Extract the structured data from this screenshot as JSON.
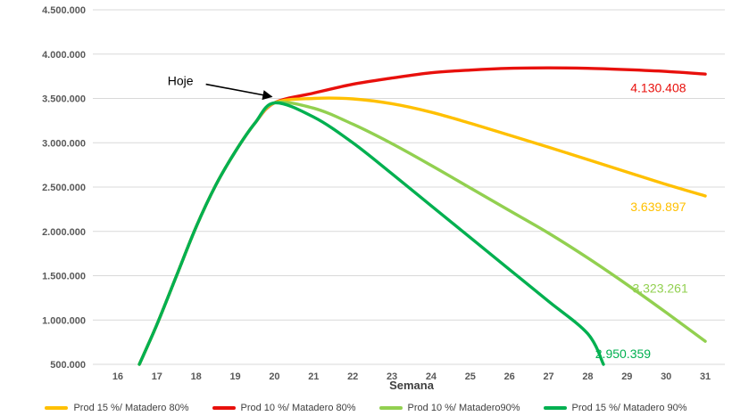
{
  "chart_data": {
    "type": "line",
    "title": "",
    "xlabel": "Semana",
    "grid": true,
    "legend_position": "bottom",
    "x_ticks": [
      16,
      17,
      18,
      19,
      20,
      21,
      22,
      23,
      24,
      25,
      26,
      27,
      28,
      29,
      30,
      31
    ],
    "ylim": [
      500000,
      4500000
    ],
    "y_ticks": [
      {
        "value": 500000,
        "label": "500.000"
      },
      {
        "value": 1000000,
        "label": "1.000.000"
      },
      {
        "value": 1500000,
        "label": "1.500.000"
      },
      {
        "value": 2000000,
        "label": "2.000.000"
      },
      {
        "value": 2500000,
        "label": "2.500.000"
      },
      {
        "value": 3000000,
        "label": "3.000.000"
      },
      {
        "value": 3500000,
        "label": "3.500.000"
      },
      {
        "value": 4000000,
        "label": "4.000.000"
      },
      {
        "value": 4500000,
        "label": "4.500.000"
      }
    ],
    "series": [
      {
        "name": "Prod 10 %/ Matadero 80%",
        "color": "#e8100c",
        "points": [
          [
            16.55,
            500000
          ],
          [
            17,
            950000
          ],
          [
            17.5,
            1500000
          ],
          [
            18,
            2050000
          ],
          [
            18.5,
            2520000
          ],
          [
            19,
            2900000
          ],
          [
            19.5,
            3220000
          ],
          [
            20,
            3450000
          ],
          [
            21,
            3560000
          ],
          [
            22,
            3660000
          ],
          [
            23,
            3730000
          ],
          [
            24,
            3790000
          ],
          [
            25,
            3820000
          ],
          [
            26,
            3840000
          ],
          [
            27,
            3845000
          ],
          [
            28,
            3840000
          ],
          [
            29,
            3825000
          ],
          [
            30,
            3805000
          ],
          [
            31,
            3775000
          ]
        ]
      },
      {
        "name": "Prod 15 %/ Matadero 80%",
        "color": "#ffc000",
        "points": [
          [
            16.55,
            500000
          ],
          [
            17,
            950000
          ],
          [
            17.5,
            1500000
          ],
          [
            18,
            2050000
          ],
          [
            18.5,
            2520000
          ],
          [
            19,
            2900000
          ],
          [
            19.5,
            3220000
          ],
          [
            20,
            3450000
          ],
          [
            21,
            3500000
          ],
          [
            22,
            3495000
          ],
          [
            23,
            3440000
          ],
          [
            24,
            3345000
          ],
          [
            25,
            3220000
          ],
          [
            26,
            3085000
          ],
          [
            27,
            2950000
          ],
          [
            28,
            2810000
          ],
          [
            29,
            2670000
          ],
          [
            30,
            2530000
          ],
          [
            31,
            2400000
          ]
        ]
      },
      {
        "name": "Prod 10 %/ Matadero90%",
        "color": "#92d050",
        "points": [
          [
            16.55,
            500000
          ],
          [
            17,
            950000
          ],
          [
            17.5,
            1500000
          ],
          [
            18,
            2050000
          ],
          [
            18.5,
            2520000
          ],
          [
            19,
            2900000
          ],
          [
            19.5,
            3220000
          ],
          [
            20,
            3450000
          ],
          [
            21,
            3390000
          ],
          [
            22,
            3210000
          ],
          [
            23,
            2990000
          ],
          [
            24,
            2745000
          ],
          [
            25,
            2490000
          ],
          [
            26,
            2235000
          ],
          [
            27,
            1980000
          ],
          [
            28,
            1700000
          ],
          [
            29,
            1400000
          ],
          [
            30,
            1085000
          ],
          [
            31,
            760000
          ]
        ]
      },
      {
        "name": "Prod 15 %/ Matadero 90%",
        "color": "#00b050",
        "points": [
          [
            16.55,
            500000
          ],
          [
            17,
            950000
          ],
          [
            17.5,
            1500000
          ],
          [
            18,
            2050000
          ],
          [
            18.5,
            2520000
          ],
          [
            19,
            2900000
          ],
          [
            19.5,
            3220000
          ],
          [
            20,
            3450000
          ],
          [
            21,
            3290000
          ],
          [
            22,
            3000000
          ],
          [
            23,
            2650000
          ],
          [
            24,
            2290000
          ],
          [
            25,
            1930000
          ],
          [
            26,
            1570000
          ],
          [
            27,
            1210000
          ],
          [
            28,
            845000
          ],
          [
            28.4,
            500000
          ]
        ]
      }
    ],
    "data_labels": [
      {
        "text": "4.130.408",
        "color": "#e8100c",
        "x": 29.8,
        "y": 3620000
      },
      {
        "text": "3.639.897",
        "color": "#ffc000",
        "x": 29.8,
        "y": 2280000
      },
      {
        "text": "3.323.261",
        "color": "#92d050",
        "x": 29.85,
        "y": 1360000
      },
      {
        "text": "2.950.359",
        "color": "#00b050",
        "x": 28.9,
        "y": 620000
      }
    ],
    "annotation": {
      "text": "Hoje",
      "text_x": 17.6,
      "text_y": 3700000,
      "arrow_from_x": 18.25,
      "arrow_from_y": 3660000,
      "arrow_to_x": 19.93,
      "arrow_to_y": 3520000
    },
    "legend": [
      {
        "label": "Prod 15 %/ Matadero 80%",
        "color": "#ffc000"
      },
      {
        "label": "Prod 10 %/ Matadero 80%",
        "color": "#e8100c"
      },
      {
        "label": "Prod 10 %/ Matadero90%",
        "color": "#92d050"
      },
      {
        "label": "Prod 15 %/ Matadero 90%",
        "color": "#00b050"
      }
    ]
  }
}
